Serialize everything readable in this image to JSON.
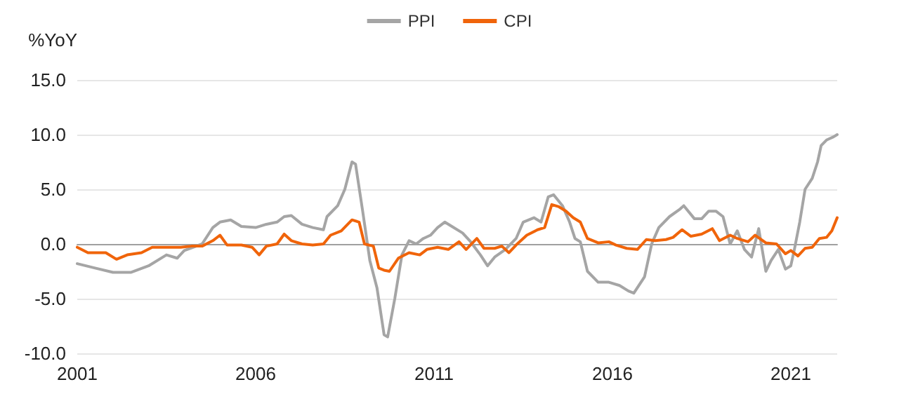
{
  "chart_data": {
    "type": "line",
    "ylabel": "%YoY",
    "legend": "top",
    "grid": "y",
    "marker": "none",
    "line_style": "solid",
    "xlim": [
      2001,
      2022.3
    ],
    "xticks": [
      2001,
      2006,
      2011,
      2016,
      2021
    ],
    "ylim": [
      -10,
      15
    ],
    "yticks": [
      {
        "value": -10,
        "label": "-10.0"
      },
      {
        "value": -5,
        "label": "-5.0"
      },
      {
        "value": 0,
        "label": "0.0"
      },
      {
        "value": 5,
        "label": "5.0"
      },
      {
        "value": 10,
        "label": "10.0"
      },
      {
        "value": 15,
        "label": "15.0"
      }
    ],
    "series": [
      {
        "name": "PPI",
        "color": "#a5a5a5",
        "x": [
          2001.0,
          2001.5,
          2002.0,
          2002.5,
          2003.0,
          2003.5,
          2003.8,
          2004.0,
          2004.5,
          2004.8,
          2005.0,
          2005.3,
          2005.6,
          2006.0,
          2006.3,
          2006.6,
          2006.8,
          2007.0,
          2007.3,
          2007.6,
          2007.9,
          2008.0,
          2008.3,
          2008.5,
          2008.7,
          2008.8,
          2009.0,
          2009.2,
          2009.4,
          2009.6,
          2009.7,
          2009.9,
          2010.1,
          2010.3,
          2010.5,
          2010.7,
          2010.9,
          2011.1,
          2011.3,
          2011.5,
          2011.8,
          2012.0,
          2012.3,
          2012.5,
          2012.7,
          2013.0,
          2013.3,
          2013.5,
          2013.8,
          2014.0,
          2014.2,
          2014.35,
          2014.6,
          2014.8,
          2014.95,
          2015.1,
          2015.3,
          2015.6,
          2015.9,
          2016.2,
          2016.45,
          2016.6,
          2016.9,
          2017.1,
          2017.3,
          2017.6,
          2017.9,
          2018.0,
          2018.3,
          2018.5,
          2018.7,
          2018.9,
          2019.1,
          2019.3,
          2019.5,
          2019.7,
          2019.9,
          2020.1,
          2020.3,
          2020.45,
          2020.65,
          2020.85,
          2021.0,
          2021.1,
          2021.25,
          2021.4,
          2021.6,
          2021.75,
          2021.85,
          2022.0,
          2022.2,
          2022.3
        ],
        "values": [
          -1.8,
          -2.2,
          -2.6,
          -2.6,
          -2.0,
          -1.0,
          -1.3,
          -0.6,
          0.0,
          1.5,
          2.0,
          2.2,
          1.6,
          1.5,
          1.8,
          2.0,
          2.5,
          2.6,
          1.8,
          1.5,
          1.3,
          2.5,
          3.5,
          5.0,
          7.5,
          7.3,
          3.0,
          -1.5,
          -4.0,
          -8.3,
          -8.5,
          -5.0,
          -1.0,
          0.3,
          0.0,
          0.5,
          0.8,
          1.5,
          2.0,
          1.6,
          1.0,
          0.3,
          -1.0,
          -2.0,
          -1.2,
          -0.5,
          0.5,
          2.0,
          2.4,
          2.0,
          4.3,
          4.5,
          3.5,
          2.0,
          0.5,
          0.2,
          -2.5,
          -3.5,
          -3.5,
          -3.8,
          -4.3,
          -4.5,
          -3.0,
          0.0,
          1.5,
          2.5,
          3.2,
          3.5,
          2.3,
          2.3,
          3.0,
          3.0,
          2.5,
          0.0,
          1.2,
          -0.5,
          -1.2,
          1.4,
          -2.5,
          -1.5,
          -0.5,
          -2.3,
          -2.0,
          -0.5,
          2.0,
          5.0,
          6.0,
          7.5,
          9.0,
          9.5,
          9.8,
          10.0
        ]
      },
      {
        "name": "CPI",
        "color": "#f0640a",
        "x": [
          2001.0,
          2001.3,
          2001.8,
          2002.1,
          2002.4,
          2002.8,
          2003.1,
          2003.5,
          2003.9,
          2004.2,
          2004.5,
          2004.8,
          2005.0,
          2005.2,
          2005.6,
          2005.9,
          2006.1,
          2006.3,
          2006.6,
          2006.8,
          2007.0,
          2007.3,
          2007.6,
          2007.9,
          2008.1,
          2008.4,
          2008.7,
          2008.9,
          2009.05,
          2009.3,
          2009.45,
          2009.6,
          2009.75,
          2010.0,
          2010.3,
          2010.6,
          2010.8,
          2011.1,
          2011.4,
          2011.7,
          2011.9,
          2012.2,
          2012.4,
          2012.7,
          2012.9,
          2013.1,
          2013.3,
          2013.6,
          2013.9,
          2014.1,
          2014.3,
          2014.5,
          2014.7,
          2014.9,
          2015.1,
          2015.3,
          2015.6,
          2015.9,
          2016.1,
          2016.4,
          2016.7,
          2016.95,
          2017.2,
          2017.5,
          2017.7,
          2017.95,
          2018.2,
          2018.5,
          2018.8,
          2019.0,
          2019.3,
          2019.5,
          2019.8,
          2020.0,
          2020.3,
          2020.6,
          2020.85,
          2021.0,
          2021.2,
          2021.4,
          2021.6,
          2021.8,
          2022.0,
          2022.15,
          2022.3
        ],
        "values": [
          -0.3,
          -0.8,
          -0.8,
          -1.4,
          -1.0,
          -0.8,
          -0.3,
          -0.3,
          -0.3,
          -0.2,
          -0.2,
          0.3,
          0.8,
          -0.1,
          -0.1,
          -0.3,
          -1.0,
          -0.2,
          0.0,
          0.9,
          0.3,
          0.0,
          -0.1,
          0.0,
          0.8,
          1.2,
          2.2,
          2.0,
          0.0,
          -0.2,
          -2.2,
          -2.4,
          -2.5,
          -1.3,
          -0.8,
          -1.0,
          -0.5,
          -0.3,
          -0.5,
          0.2,
          -0.5,
          0.5,
          -0.4,
          -0.4,
          -0.2,
          -0.8,
          -0.1,
          0.8,
          1.3,
          1.5,
          3.6,
          3.4,
          3.0,
          2.4,
          2.0,
          0.5,
          0.1,
          0.2,
          -0.1,
          -0.4,
          -0.5,
          0.4,
          0.3,
          0.4,
          0.6,
          1.3,
          0.7,
          0.9,
          1.4,
          0.3,
          0.8,
          0.5,
          0.2,
          0.8,
          0.1,
          0.0,
          -0.9,
          -0.6,
          -1.1,
          -0.4,
          -0.3,
          0.5,
          0.6,
          1.2,
          2.4
        ]
      }
    ]
  }
}
